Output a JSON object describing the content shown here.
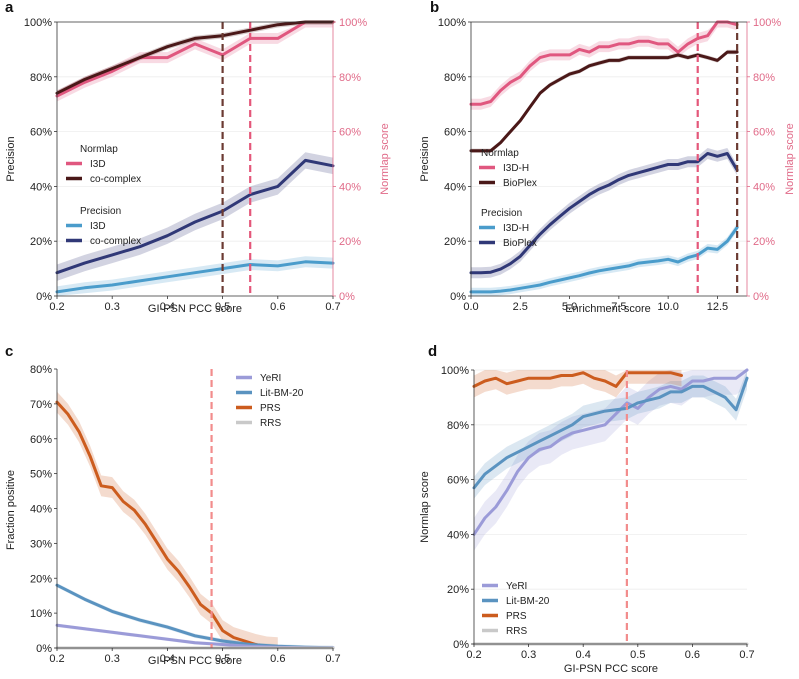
{
  "colors": {
    "pink": "#e0577f",
    "dark": "#4a1818",
    "lightblue": "#4a9ccb",
    "navy": "#303877",
    "purple": "#9b9bd8",
    "steel": "#5a93c0",
    "orange": "#cc5c1e",
    "gray": "#c9c9c9",
    "vline_dark": "#6b3a32",
    "vline_pink": "#e4577a",
    "vline_salmon": "#f28c8c",
    "right_axis": "#e06a88"
  },
  "chart_data": [
    {
      "panel_label": "a",
      "type": "line",
      "xlabel": "GI-PSN PCC score",
      "ylabel": "Precision",
      "ylabel_right": "Normlap score",
      "xlim": [
        0.2,
        0.7
      ],
      "ylim": [
        0,
        100
      ],
      "xticks": [
        0.2,
        0.3,
        0.4,
        0.5,
        0.6,
        0.7
      ],
      "xticklabels": [
        "0.2",
        "0.3",
        "0.4",
        "0.5",
        "0.6",
        "0.7"
      ],
      "yticks": [
        0,
        20,
        40,
        60,
        80,
        100
      ],
      "yticklabels": [
        "0%",
        "20%",
        "40%",
        "60%",
        "80%",
        "100%"
      ],
      "yticklabels_right": [
        "0%",
        "20%",
        "40%",
        "60%",
        "80%",
        "100%"
      ],
      "vlines": [
        {
          "x": 0.5,
          "color": "vline_dark"
        },
        {
          "x": 0.55,
          "color": "vline_pink"
        }
      ],
      "legends": [
        {
          "title": "Normlap",
          "entries": [
            {
              "label": "I3D",
              "color": "pink"
            },
            {
              "label": "co-complex",
              "color": "dark"
            }
          ]
        },
        {
          "title": "Precision",
          "entries": [
            {
              "label": "I3D",
              "color": "lightblue"
            },
            {
              "label": "co-complex",
              "color": "navy"
            }
          ]
        }
      ],
      "series": [
        {
          "name": "Normlap I3D",
          "color": "pink",
          "band": 2,
          "x": [
            0.2,
            0.25,
            0.3,
            0.35,
            0.4,
            0.45,
            0.5,
            0.55,
            0.6,
            0.65,
            0.7
          ],
          "y": [
            73,
            78,
            82,
            87,
            87,
            92,
            88,
            94,
            94,
            100,
            100
          ]
        },
        {
          "name": "Normlap co-complex",
          "color": "dark",
          "band": 1,
          "x": [
            0.2,
            0.25,
            0.3,
            0.35,
            0.4,
            0.45,
            0.5,
            0.55,
            0.6,
            0.65,
            0.7
          ],
          "y": [
            74,
            79,
            83,
            87,
            91,
            94,
            95,
            97,
            99,
            100,
            100
          ]
        },
        {
          "name": "Precision I3D",
          "color": "lightblue",
          "band": 2,
          "x": [
            0.2,
            0.25,
            0.3,
            0.35,
            0.4,
            0.45,
            0.5,
            0.55,
            0.6,
            0.65,
            0.7
          ],
          "y": [
            1.5,
            3,
            4,
            5.5,
            7,
            8.5,
            10,
            11.5,
            11,
            12.5,
            12
          ]
        },
        {
          "name": "Precision co-complex",
          "color": "navy",
          "band": 3,
          "x": [
            0.2,
            0.25,
            0.3,
            0.35,
            0.4,
            0.45,
            0.5,
            0.55,
            0.6,
            0.65,
            0.7
          ],
          "y": [
            8.5,
            12,
            15,
            18,
            22,
            27,
            31,
            37,
            40,
            49.5,
            47.5
          ]
        }
      ]
    },
    {
      "panel_label": "b",
      "type": "line",
      "xlabel": "Enrichment score",
      "ylabel": "Precision",
      "ylabel_right": "Normlap score",
      "xlim": [
        0,
        14
      ],
      "ylim": [
        0,
        100
      ],
      "xticks": [
        0,
        2.5,
        5,
        7.5,
        10,
        12.5
      ],
      "xticklabels": [
        "0.0",
        "2.5",
        "5.0",
        "7.5",
        "10.0",
        "12.5"
      ],
      "yticks": [
        0,
        20,
        40,
        60,
        80,
        100
      ],
      "yticklabels": [
        "0%",
        "20%",
        "40%",
        "60%",
        "80%",
        "100%"
      ],
      "yticklabels_right": [
        "0%",
        "20%",
        "40%",
        "60%",
        "80%",
        "100%"
      ],
      "vlines": [
        {
          "x": 11.5,
          "color": "vline_pink"
        },
        {
          "x": 13.5,
          "color": "vline_dark"
        }
      ],
      "legends": [
        {
          "title": "Normlap",
          "entries": [
            {
              "label": "I3D-H",
              "color": "pink"
            },
            {
              "label": "BioPlex",
              "color": "dark"
            }
          ]
        },
        {
          "title": "Precision",
          "entries": [
            {
              "label": "I3D-H",
              "color": "lightblue"
            },
            {
              "label": "BioPlex",
              "color": "navy"
            }
          ]
        }
      ],
      "series": [
        {
          "name": "Normlap I3D-H",
          "color": "pink",
          "band": 2,
          "x": [
            0,
            0.5,
            1,
            1.5,
            2,
            2.5,
            3,
            3.5,
            4,
            4.5,
            5,
            5.5,
            6,
            6.5,
            7,
            7.5,
            8,
            8.5,
            9,
            9.5,
            10,
            10.5,
            11,
            11.5,
            12,
            12.5,
            13,
            13.5
          ],
          "y": [
            70,
            70,
            71,
            75,
            78,
            80,
            84,
            87,
            88,
            88,
            88,
            90,
            89,
            91,
            91,
            92,
            92,
            93,
            93,
            92,
            92,
            89,
            92,
            94,
            95,
            100,
            100,
            99
          ]
        },
        {
          "name": "Normlap BioPlex",
          "color": "dark",
          "band": 0.8,
          "x": [
            0,
            0.5,
            1,
            1.5,
            2,
            2.5,
            3,
            3.5,
            4,
            4.5,
            5,
            5.5,
            6,
            6.5,
            7,
            7.5,
            8,
            8.5,
            9,
            9.5,
            10,
            10.5,
            11,
            11.5,
            12,
            12.5,
            13,
            13.5
          ],
          "y": [
            53,
            53,
            53,
            56,
            60,
            64,
            69,
            74,
            77,
            79,
            81,
            82,
            84,
            85,
            86,
            86,
            87,
            87,
            87,
            87,
            87,
            88,
            87,
            88,
            87,
            86,
            89,
            89
          ]
        },
        {
          "name": "Precision I3D-H",
          "color": "lightblue",
          "band": 1.5,
          "x": [
            0,
            0.5,
            1,
            1.5,
            2,
            2.5,
            3,
            3.5,
            4,
            4.5,
            5,
            5.5,
            6,
            6.5,
            7,
            7.5,
            8,
            8.5,
            9,
            9.5,
            10,
            10.5,
            11,
            11.5,
            12,
            12.5,
            13,
            13.5
          ],
          "y": [
            1.5,
            1.5,
            1.5,
            1.8,
            2.2,
            2.8,
            3.4,
            4,
            5,
            5.8,
            6.6,
            7.4,
            8.4,
            9.2,
            9.8,
            10.4,
            11,
            12,
            12.4,
            12.8,
            13.4,
            12.4,
            14,
            15,
            17.5,
            17,
            20,
            25
          ]
        },
        {
          "name": "Precision BioPlex",
          "color": "navy",
          "band": 2,
          "x": [
            0,
            0.5,
            1,
            1.5,
            2,
            2.5,
            3,
            3.5,
            4,
            4.5,
            5,
            5.5,
            6,
            6.5,
            7,
            7.5,
            8,
            8.5,
            9,
            9.5,
            10,
            10.5,
            11,
            11.5,
            12,
            12.5,
            13,
            13.5
          ],
          "y": [
            8.5,
            8.5,
            8.7,
            9.8,
            11.8,
            14.5,
            18.5,
            22.5,
            26,
            29,
            32,
            34.5,
            37,
            39,
            40.5,
            42.5,
            44,
            45,
            46,
            47,
            48,
            48,
            49,
            49,
            52,
            51,
            52,
            46
          ]
        }
      ]
    },
    {
      "panel_label": "c",
      "type": "line",
      "xlabel": "GI-PSN PCC score",
      "ylabel": "Fraction positive",
      "xlim": [
        0.2,
        0.7
      ],
      "ylim": [
        0,
        80
      ],
      "xticks": [
        0.2,
        0.3,
        0.4,
        0.5,
        0.6,
        0.7
      ],
      "xticklabels": [
        "0.2",
        "0.3",
        "0.4",
        "0.5",
        "0.6",
        "0.7"
      ],
      "yticks": [
        0,
        10,
        20,
        30,
        40,
        50,
        60,
        70,
        80
      ],
      "yticklabels": [
        "0%",
        "10%",
        "20%",
        "30%",
        "40%",
        "50%",
        "60%",
        "70%",
        "80%"
      ],
      "vlines": [
        {
          "x": 0.48,
          "color": "vline_salmon"
        }
      ],
      "legends": [
        {
          "title": "",
          "entries": [
            {
              "label": "YeRI",
              "color": "purple"
            },
            {
              "label": "Lit-BM-20",
              "color": "steel"
            },
            {
              "label": "PRS",
              "color": "orange"
            },
            {
              "label": "RRS",
              "color": "gray"
            }
          ]
        }
      ],
      "series": [
        {
          "name": "PRS",
          "color": "orange",
          "band": 3,
          "x": [
            0.2,
            0.22,
            0.24,
            0.26,
            0.28,
            0.3,
            0.32,
            0.34,
            0.36,
            0.38,
            0.4,
            0.42,
            0.44,
            0.46,
            0.48,
            0.5,
            0.52,
            0.54,
            0.56,
            0.58,
            0.6
          ],
          "y": [
            70.5,
            67,
            62,
            55,
            46.5,
            46,
            42,
            39.5,
            35.5,
            30.5,
            25.5,
            22,
            17.5,
            12.5,
            10,
            5,
            3,
            2,
            1,
            0.3,
            0.1
          ]
        },
        {
          "name": "Lit-BM-20",
          "color": "steel",
          "band": 0.6,
          "x": [
            0.2,
            0.25,
            0.3,
            0.35,
            0.4,
            0.45,
            0.5,
            0.55,
            0.6,
            0.65,
            0.7
          ],
          "y": [
            18,
            14,
            10.5,
            8,
            6,
            3.5,
            2,
            1,
            0.5,
            0.2,
            0.1
          ]
        },
        {
          "name": "YeRI",
          "color": "purple",
          "band": 0.5,
          "x": [
            0.2,
            0.25,
            0.3,
            0.35,
            0.4,
            0.45,
            0.5,
            0.55,
            0.6,
            0.65,
            0.7
          ],
          "y": [
            6.5,
            5.5,
            4.5,
            3.5,
            2.5,
            1.5,
            1,
            0.5,
            0.2,
            0.1,
            0.05
          ]
        },
        {
          "name": "RRS",
          "color": "gray",
          "band": 0,
          "x": [
            0.2,
            0.7
          ],
          "y": [
            0,
            0
          ]
        }
      ]
    },
    {
      "panel_label": "d",
      "type": "line",
      "xlabel": "GI-PSN PCC score",
      "ylabel": "Normlap score",
      "xlim": [
        0.2,
        0.7
      ],
      "ylim": [
        0,
        100
      ],
      "xticks": [
        0.2,
        0.3,
        0.4,
        0.5,
        0.6,
        0.7
      ],
      "xticklabels": [
        "0.2",
        "0.3",
        "0.4",
        "0.5",
        "0.6",
        "0.7"
      ],
      "yticks": [
        0,
        20,
        40,
        60,
        80,
        100
      ],
      "yticklabels": [
        "0%",
        "20%",
        "40%",
        "60%",
        "80%",
        "100%"
      ],
      "vlines": [
        {
          "x": 0.48,
          "color": "vline_salmon"
        }
      ],
      "legends": [
        {
          "title": "",
          "entries": [
            {
              "label": "YeRI",
              "color": "purple"
            },
            {
              "label": "Lit-BM-20",
              "color": "steel"
            },
            {
              "label": "PRS",
              "color": "orange"
            },
            {
              "label": "RRS",
              "color": "gray"
            }
          ]
        }
      ],
      "series": [
        {
          "name": "YeRI",
          "color": "purple",
          "band": 6,
          "x": [
            0.2,
            0.22,
            0.24,
            0.26,
            0.28,
            0.3,
            0.32,
            0.34,
            0.36,
            0.38,
            0.4,
            0.42,
            0.44,
            0.46,
            0.48,
            0.5,
            0.52,
            0.54,
            0.56,
            0.58,
            0.6,
            0.62,
            0.64,
            0.66,
            0.68,
            0.7
          ],
          "y": [
            40,
            46,
            50,
            56,
            63,
            68,
            71,
            72,
            75,
            77,
            78,
            79,
            80,
            84,
            88,
            86,
            90,
            93,
            94,
            93,
            96,
            96,
            97,
            97,
            97,
            100
          ]
        },
        {
          "name": "Lit-BM-20",
          "color": "steel",
          "band": 4,
          "x": [
            0.2,
            0.22,
            0.24,
            0.26,
            0.28,
            0.3,
            0.32,
            0.34,
            0.36,
            0.38,
            0.4,
            0.42,
            0.44,
            0.46,
            0.48,
            0.5,
            0.52,
            0.54,
            0.56,
            0.58,
            0.6,
            0.62,
            0.64,
            0.66,
            0.68,
            0.7
          ],
          "y": [
            57,
            62,
            65,
            68,
            70,
            72,
            74,
            76,
            78,
            80,
            83,
            84,
            85,
            85.5,
            86,
            88,
            89,
            90,
            92,
            92,
            94,
            94,
            92,
            90,
            85.5,
            97
          ]
        },
        {
          "name": "PRS",
          "color": "orange",
          "band": 4,
          "x": [
            0.2,
            0.22,
            0.24,
            0.26,
            0.28,
            0.3,
            0.32,
            0.34,
            0.36,
            0.38,
            0.4,
            0.42,
            0.44,
            0.46,
            0.48,
            0.5,
            0.52,
            0.54,
            0.56,
            0.58
          ],
          "y": [
            94,
            96,
            97,
            95,
            96,
            97,
            97,
            97,
            98,
            98,
            99,
            97,
            96,
            94,
            99,
            99,
            99,
            99,
            99,
            98
          ]
        },
        {
          "name": "RRS",
          "color": "gray",
          "band": 0,
          "x": [
            0.2,
            0.7
          ],
          "y": [
            0,
            0
          ]
        }
      ]
    }
  ]
}
